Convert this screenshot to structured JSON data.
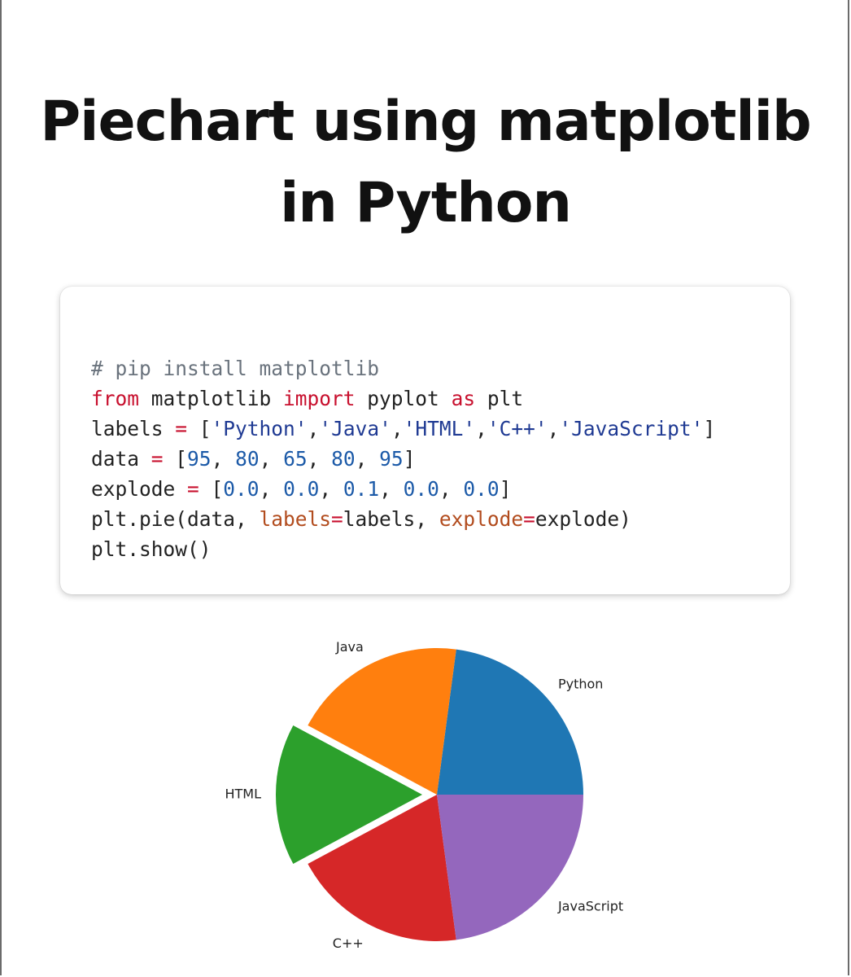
{
  "title": {
    "line1": "Piechart using matplotlib",
    "line2": "in Python"
  },
  "code": {
    "line1": {
      "comment": "# pip install matplotlib"
    },
    "line2": {
      "kw1": "from",
      "t1": " matplotlib ",
      "kw2": "import",
      "t2": " pyplot ",
      "kw3": "as",
      "t3": " plt"
    },
    "line3": {
      "t1": "labels ",
      "op": "=",
      "t2": " [",
      "s1": "'Python'",
      "c1": ",",
      "s2": "'Java'",
      "c2": ",",
      "s3": "'HTML'",
      "c3": ",",
      "s4": "'C++'",
      "c4": ",",
      "s5": "'JavaScript'",
      "t3": "]"
    },
    "line4": {
      "t1": "data ",
      "op": "=",
      "t2": " [",
      "n1": "95",
      "c1": ", ",
      "n2": "80",
      "c2": ", ",
      "n3": "65",
      "c3": ", ",
      "n4": "80",
      "c4": ", ",
      "n5": "95",
      "t3": "]"
    },
    "line5": {
      "t1": "explode ",
      "op": "=",
      "t2": " [",
      "n1": "0.0",
      "c1": ", ",
      "n2": "0.0",
      "c2": ", ",
      "n3": "0.1",
      "c3": ", ",
      "n4": "0.0",
      "c4": ", ",
      "n5": "0.0",
      "t3": "]"
    },
    "line6": {
      "t1": "plt.pie(data, ",
      "a1": "labels",
      "op1": "=",
      "t2": "labels, ",
      "a2": "explode",
      "op2": "=",
      "t3": "explode)"
    },
    "line7": {
      "t1": "plt.show()"
    }
  },
  "chart_data": {
    "type": "pie",
    "labels": [
      "Python",
      "Java",
      "HTML",
      "C++",
      "JavaScript"
    ],
    "values": [
      95,
      80,
      65,
      80,
      95
    ],
    "explode": [
      0.0,
      0.0,
      0.1,
      0.0,
      0.0
    ],
    "colors": [
      "#1f77b4",
      "#ff7f0e",
      "#2ca02c",
      "#d62728",
      "#9467bd"
    ],
    "start_angle": 0,
    "direction": "counterclockwise"
  }
}
